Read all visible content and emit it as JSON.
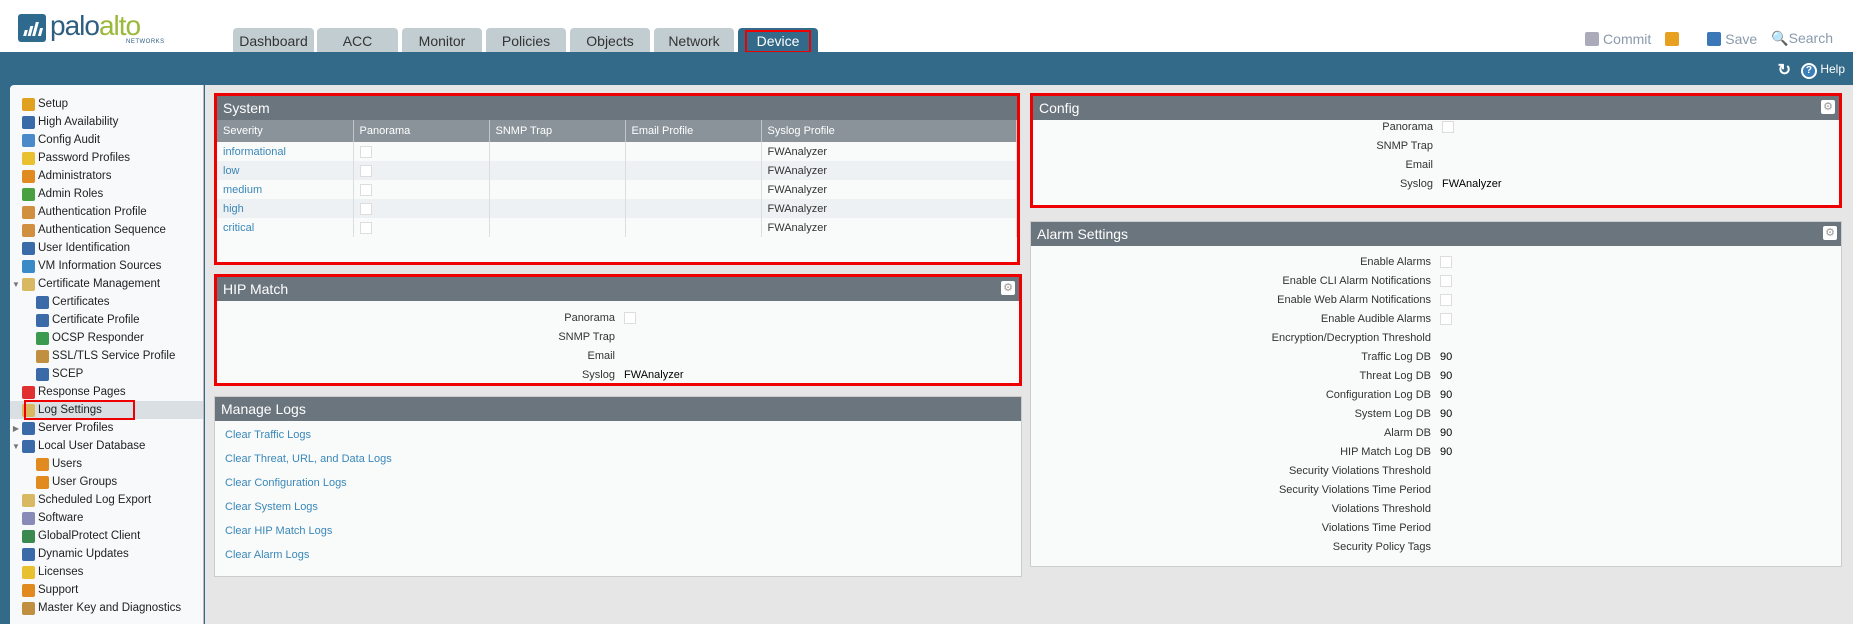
{
  "brand": {
    "name_a": "palo",
    "name_b": "alto",
    "sub": "NETWORKS"
  },
  "tabs": [
    {
      "label": "Dashboard"
    },
    {
      "label": "ACC"
    },
    {
      "label": "Monitor"
    },
    {
      "label": "Policies"
    },
    {
      "label": "Objects"
    },
    {
      "label": "Network"
    },
    {
      "label": "Device",
      "active": true
    }
  ],
  "toplinks": {
    "commit": "Commit",
    "save": "Save",
    "search": "Search",
    "help": "Help"
  },
  "sidebar": [
    {
      "label": "Setup",
      "level": 0,
      "color": "#e0a020"
    },
    {
      "label": "High Availability",
      "level": 0,
      "color": "#3a6aa8"
    },
    {
      "label": "Config Audit",
      "level": 0,
      "color": "#4a8ac8"
    },
    {
      "label": "Password Profiles",
      "level": 0,
      "color": "#e8c030"
    },
    {
      "label": "Administrators",
      "level": 0,
      "color": "#e08a20"
    },
    {
      "label": "Admin Roles",
      "level": 0,
      "color": "#4aa040"
    },
    {
      "label": "Authentication Profile",
      "level": 0,
      "color": "#d09040"
    },
    {
      "label": "Authentication Sequence",
      "level": 0,
      "color": "#d09040"
    },
    {
      "label": "User Identification",
      "level": 0,
      "color": "#3a6aa8"
    },
    {
      "label": "VM Information Sources",
      "level": 0,
      "color": "#3a8ac8"
    },
    {
      "label": "Certificate Management",
      "level": 0,
      "color": "#d8b860",
      "expand": "open"
    },
    {
      "label": "Certificates",
      "level": 1,
      "color": "#3a6aa8"
    },
    {
      "label": "Certificate Profile",
      "level": 1,
      "color": "#3a6aa8"
    },
    {
      "label": "OCSP Responder",
      "level": 1,
      "color": "#3a9a50"
    },
    {
      "label": "SSL/TLS Service Profile",
      "level": 1,
      "color": "#c09040"
    },
    {
      "label": "SCEP",
      "level": 1,
      "color": "#3a6aa8"
    },
    {
      "label": "Response Pages",
      "level": 0,
      "color": "#e03030"
    },
    {
      "label": "Log Settings",
      "level": 0,
      "color": "#d8b860",
      "selected": true
    },
    {
      "label": "Server Profiles",
      "level": 0,
      "color": "#3a6aa8",
      "expand": "closed"
    },
    {
      "label": "Local User Database",
      "level": 0,
      "color": "#3a6aa8",
      "expand": "open"
    },
    {
      "label": "Users",
      "level": 1,
      "color": "#e08a20"
    },
    {
      "label": "User Groups",
      "level": 1,
      "color": "#e08a20"
    },
    {
      "label": "Scheduled Log Export",
      "level": 0,
      "color": "#d8b860"
    },
    {
      "label": "Software",
      "level": 0,
      "color": "#8a8ab8"
    },
    {
      "label": "GlobalProtect Client",
      "level": 0,
      "color": "#3a8a50"
    },
    {
      "label": "Dynamic Updates",
      "level": 0,
      "color": "#3a6aa8"
    },
    {
      "label": "Licenses",
      "level": 0,
      "color": "#e8c030"
    },
    {
      "label": "Support",
      "level": 0,
      "color": "#e08a20"
    },
    {
      "label": "Master Key and Diagnostics",
      "level": 0,
      "color": "#c09040"
    }
  ],
  "system": {
    "title": "System",
    "columns": [
      "Severity",
      "Panorama",
      "SNMP Trap",
      "Email Profile",
      "Syslog Profile"
    ],
    "rows": [
      {
        "severity": "informational",
        "panorama": false,
        "snmp": "",
        "email": "",
        "syslog": "FWAnalyzer"
      },
      {
        "severity": "low",
        "panorama": false,
        "snmp": "",
        "email": "",
        "syslog": "FWAnalyzer"
      },
      {
        "severity": "medium",
        "panorama": false,
        "snmp": "",
        "email": "",
        "syslog": "FWAnalyzer"
      },
      {
        "severity": "high",
        "panorama": false,
        "snmp": "",
        "email": "",
        "syslog": "FWAnalyzer"
      },
      {
        "severity": "critical",
        "panorama": false,
        "snmp": "",
        "email": "",
        "syslog": "FWAnalyzer"
      }
    ]
  },
  "hip": {
    "title": "HIP Match",
    "fields": [
      {
        "label": "Panorama",
        "checkbox": true
      },
      {
        "label": "SNMP Trap",
        "value": ""
      },
      {
        "label": "Email",
        "value": ""
      },
      {
        "label": "Syslog",
        "value": "FWAnalyzer"
      }
    ]
  },
  "manage_logs": {
    "title": "Manage Logs",
    "links": [
      "Clear Traffic Logs",
      "Clear Threat, URL, and Data Logs",
      "Clear Configuration Logs",
      "Clear System Logs",
      "Clear HIP Match Logs",
      "Clear Alarm Logs"
    ]
  },
  "config": {
    "title": "Config",
    "fields": [
      {
        "label": "Panorama",
        "checkbox": true
      },
      {
        "label": "SNMP Trap",
        "value": ""
      },
      {
        "label": "Email",
        "value": ""
      },
      {
        "label": "Syslog",
        "value": "FWAnalyzer"
      }
    ]
  },
  "alarm": {
    "title": "Alarm Settings",
    "fields": [
      {
        "label": "Enable Alarms",
        "checkbox": true
      },
      {
        "label": "Enable CLI Alarm Notifications",
        "checkbox": true
      },
      {
        "label": "Enable Web Alarm Notifications",
        "checkbox": true
      },
      {
        "label": "Enable Audible Alarms",
        "checkbox": true
      },
      {
        "label": "Encryption/Decryption Threshold",
        "value": ""
      },
      {
        "label": "Traffic Log DB",
        "value": "90"
      },
      {
        "label": "Threat Log DB",
        "value": "90"
      },
      {
        "label": "Configuration Log DB",
        "value": "90"
      },
      {
        "label": "System Log DB",
        "value": "90"
      },
      {
        "label": "Alarm DB",
        "value": "90"
      },
      {
        "label": "HIP Match Log DB",
        "value": "90"
      },
      {
        "label": "Security Violations Threshold",
        "value": ""
      },
      {
        "label": "Security Violations Time Period",
        "value": ""
      },
      {
        "label": "Violations Threshold",
        "value": ""
      },
      {
        "label": "Violations Time Period",
        "value": ""
      },
      {
        "label": "Security Policy Tags",
        "value": ""
      }
    ]
  },
  "colors": {
    "nav": "#336a89",
    "panel_header": "#6b757e",
    "link": "#3a87b8",
    "highlight": "#e00000"
  }
}
